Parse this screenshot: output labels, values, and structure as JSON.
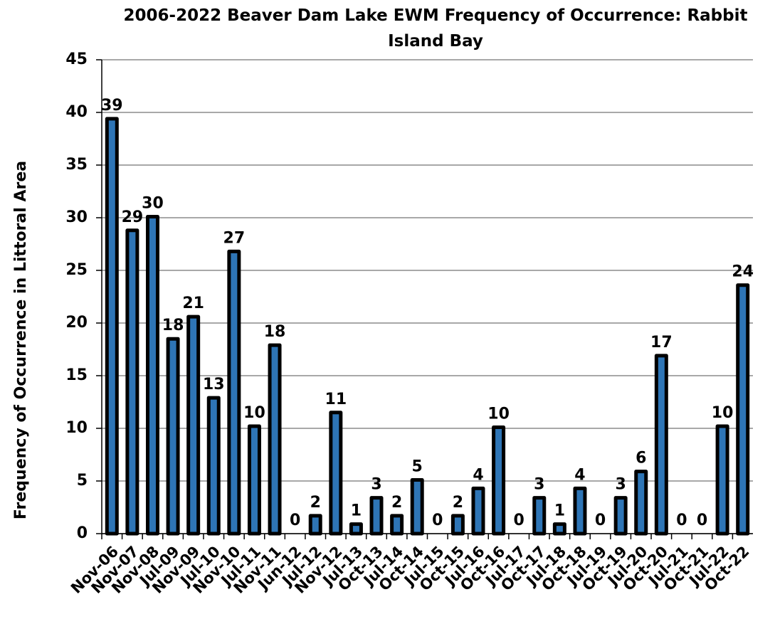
{
  "chart_data": {
    "type": "bar",
    "title": "2006-2022 Beaver Dam Lake EWM Frequency of Occurrence:  Rabbit Island Bay",
    "y_label": "Frequency of Occurrence in Littoral Area",
    "categories": [
      "Nov-06",
      "Nov-07",
      "Nov-08",
      "Jul-09",
      "Nov-09",
      "Jul-10",
      "Nov-10",
      "Jul-11",
      "Nov-11",
      "Jun-12",
      "Jul-12",
      "Nov-12",
      "Jul-13",
      "Oct-13",
      "Jul-14",
      "Oct-14",
      "Jul-15",
      "Oct-15",
      "Jul-16",
      "Oct-16",
      "Jul-17",
      "Oct-17",
      "Jul-18",
      "Oct-18",
      "Jul-19",
      "Oct-19",
      "Jul-20",
      "Oct-20",
      "Jul-21",
      "Oct-21",
      "Jul-22",
      "Oct-22"
    ],
    "values": [
      39.4,
      28.8,
      30.1,
      18.5,
      20.6,
      12.9,
      26.8,
      10.2,
      17.9,
      0,
      1.7,
      11.5,
      0.9,
      3.4,
      1.7,
      5.1,
      0,
      1.7,
      4.3,
      10.1,
      0,
      3.4,
      0.9,
      4.3,
      0,
      3.4,
      5.9,
      16.9,
      0,
      0,
      10.2,
      23.6
    ],
    "value_labels": [
      "39",
      "29",
      "30",
      "18",
      "21",
      "13",
      "27",
      "10",
      "18",
      "0",
      "2",
      "11",
      "1",
      "3",
      "2",
      "5",
      "0",
      "2",
      "4",
      "10",
      "0",
      "3",
      "1",
      "4",
      "0",
      "3",
      "6",
      "17",
      "0",
      "0",
      "10",
      "24"
    ],
    "color": "#2e75b6",
    "ylim": [
      0,
      45
    ],
    "yticks": [
      0,
      5,
      10,
      15,
      20,
      25,
      30,
      35,
      40,
      45
    ],
    "grid": true
  }
}
